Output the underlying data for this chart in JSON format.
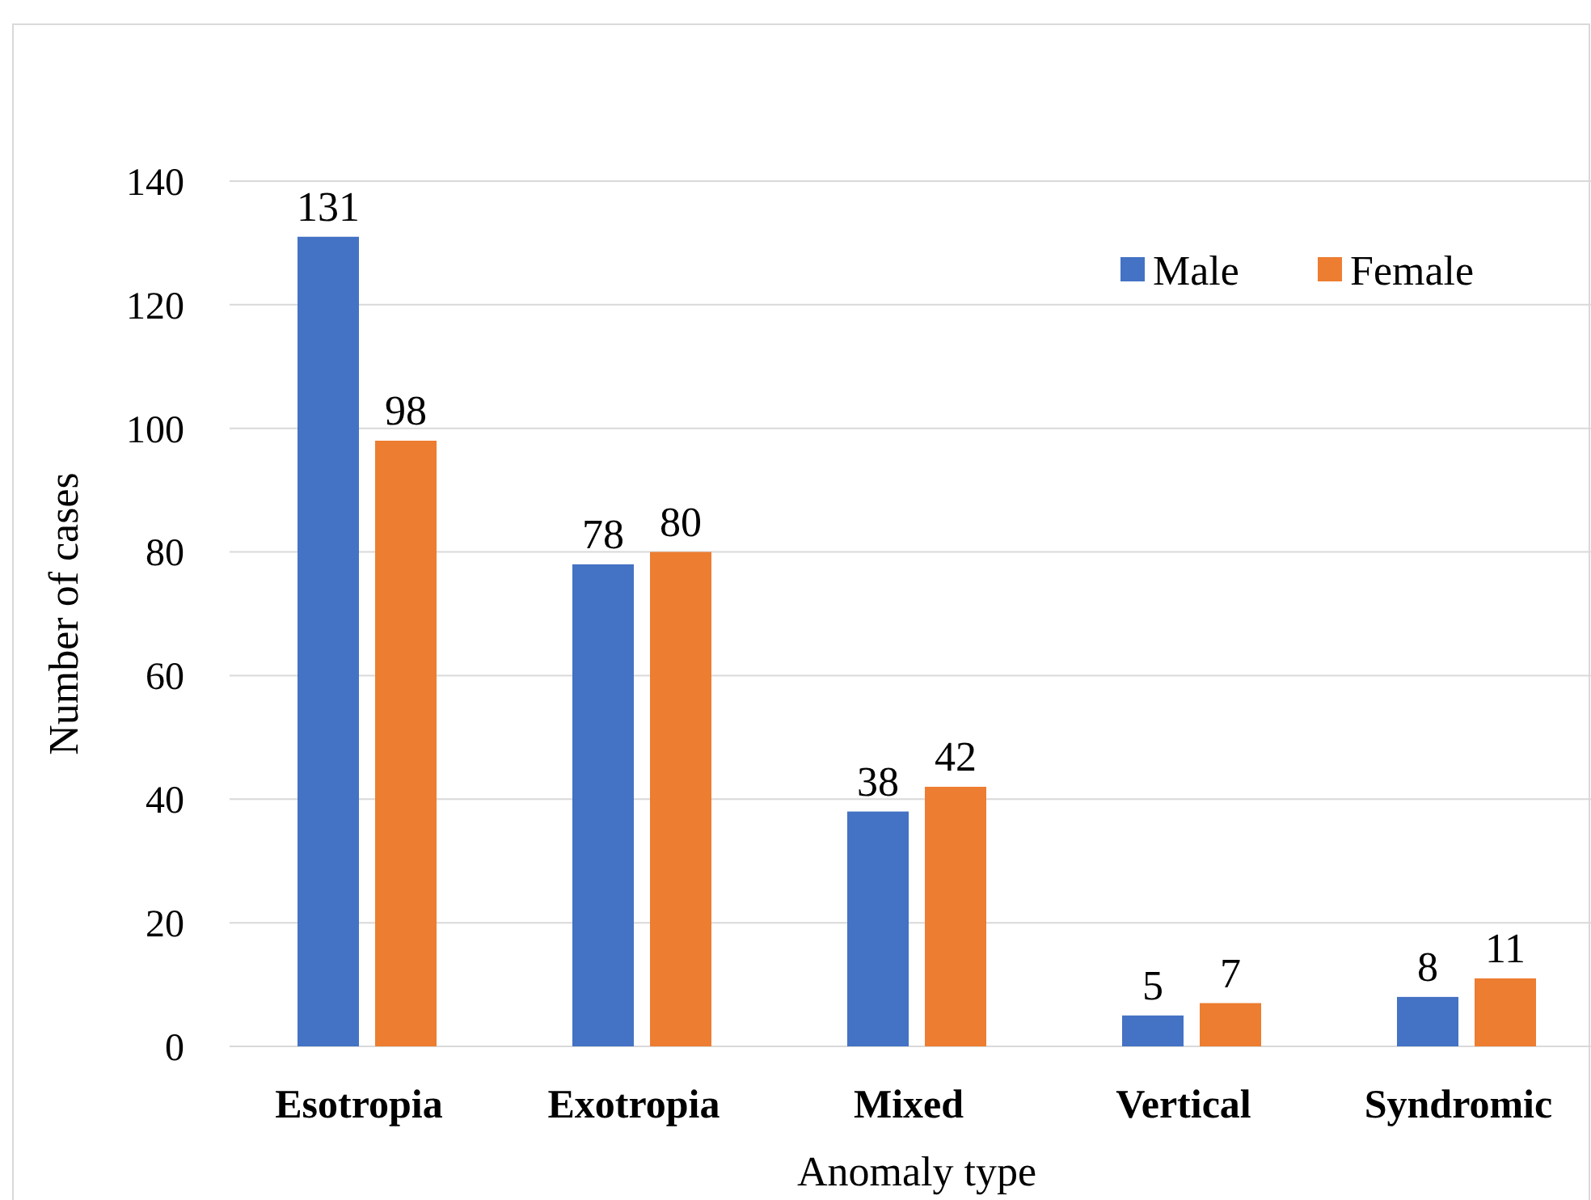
{
  "chart_data": {
    "type": "bar",
    "xlabel": "Anomaly type",
    "ylabel": "Number of cases",
    "categories": [
      "Esotropia",
      "Exotropia",
      "Mixed",
      "Vertical",
      "Syndromic"
    ],
    "series": [
      {
        "name": "Male",
        "color": "#4472c4",
        "values": [
          131,
          78,
          38,
          5,
          8
        ]
      },
      {
        "name": "Female",
        "color": "#ed7d31",
        "values": [
          98,
          80,
          42,
          7,
          11
        ]
      }
    ],
    "ylim": [
      0,
      140
    ],
    "yticks": [
      0,
      20,
      40,
      60,
      80,
      100,
      120,
      140
    ],
    "grid": "y",
    "legend": "top right",
    "data_labels": true
  }
}
